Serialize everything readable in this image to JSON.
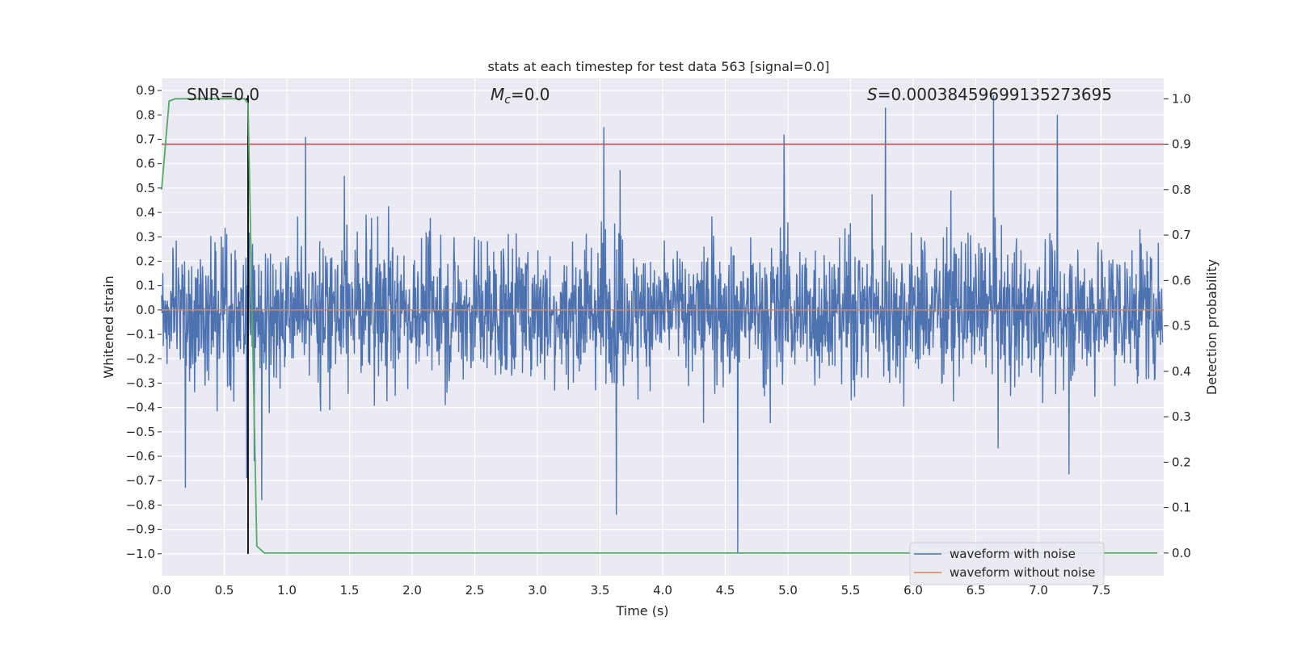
{
  "chart_data": {
    "type": "line",
    "title": "stats at each timestep for test data 563 [signal=0.0]",
    "xlabel": "Time (s)",
    "ylabel_left": "Whitened strain",
    "ylabel_right": "Detection probability",
    "xlim": [
      0.0,
      8.0
    ],
    "ylim_left": [
      -1.09,
      0.95
    ],
    "ylim_right": [
      -0.05,
      1.045
    ],
    "x_ticks": [
      "0.0",
      "0.5",
      "1.0",
      "1.5",
      "2.0",
      "2.5",
      "3.0",
      "3.5",
      "4.0",
      "4.5",
      "5.0",
      "5.5",
      "6.0",
      "6.5",
      "7.0",
      "7.5"
    ],
    "x_tick_values": [
      0.0,
      0.5,
      1.0,
      1.5,
      2.0,
      2.5,
      3.0,
      3.5,
      4.0,
      4.5,
      5.0,
      5.5,
      6.0,
      6.5,
      7.0,
      7.5
    ],
    "y_left_ticks": [
      "0.9",
      "0.8",
      "0.7",
      "0.6",
      "0.5",
      "0.4",
      "0.3",
      "0.2",
      "0.1",
      "0.0",
      "−0.1",
      "−0.2",
      "−0.3",
      "−0.4",
      "−0.5",
      "−0.6",
      "−0.7",
      "−0.8",
      "−0.9",
      "−1.0"
    ],
    "y_left_tick_values": [
      0.9,
      0.8,
      0.7,
      0.6,
      0.5,
      0.4,
      0.3,
      0.2,
      0.1,
      0.0,
      -0.1,
      -0.2,
      -0.3,
      -0.4,
      -0.5,
      -0.6,
      -0.7,
      -0.8,
      -0.9,
      -1.0
    ],
    "y_right_ticks": [
      "1.0",
      "0.9",
      "0.8",
      "0.7",
      "0.6",
      "0.5",
      "0.4",
      "0.3",
      "0.2",
      "0.1",
      "0.0"
    ],
    "y_right_tick_values": [
      1.0,
      0.9,
      0.8,
      0.7,
      0.6,
      0.5,
      0.4,
      0.3,
      0.2,
      0.1,
      0.0
    ],
    "annotations": {
      "snr": "SNR=0.0",
      "mc_symbol": "M",
      "mc_sub": "c",
      "mc_value": "=0.0",
      "s_symbol": "S",
      "s_value": "=0.00038459699135273695"
    },
    "series": [
      {
        "name": "waveform with noise",
        "color": "#4c72b0",
        "axis": "left",
        "description": "noise, approx amplitude 0.45 with peaks to 0.88 / -1.0"
      },
      {
        "name": "waveform without noise",
        "color": "#dd8452",
        "axis": "left",
        "y_constant": 0.0
      },
      {
        "name": "detection probability",
        "color": "#55a868",
        "axis": "right",
        "x": [
          0.0,
          0.06,
          0.11,
          0.2,
          0.4,
          0.6,
          0.66,
          0.69,
          0.76,
          0.82,
          1.0,
          7.8,
          7.95
        ],
        "y": [
          0.8,
          0.995,
          1.0,
          1.0,
          1.0,
          1.0,
          1.0,
          0.99,
          0.015,
          0.0,
          0.0,
          0.0,
          0.0
        ]
      },
      {
        "name": "threshold",
        "color": "#c44e52",
        "axis": "right",
        "y_constant": 0.9
      }
    ],
    "vertical_marker": {
      "x": 0.69,
      "color": "#000000",
      "y_range_left": [
        -1.0,
        0.88
      ]
    },
    "legend": {
      "placement": "lower-right",
      "entries": [
        "waveform with noise",
        "waveform without noise"
      ]
    },
    "colors": {
      "background": "#eaeaf2",
      "grid": "#ffffff",
      "noise": "#4c72b0",
      "clean": "#dd8452",
      "probability": "#55a868",
      "threshold": "#c44e52",
      "marker": "#000000"
    }
  }
}
